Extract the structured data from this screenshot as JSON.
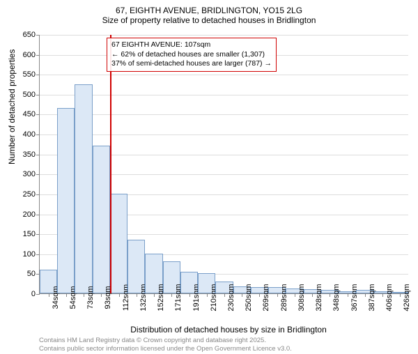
{
  "titles": {
    "line1": "67, EIGHTH AVENUE, BRIDLINGTON, YO15 2LG",
    "line2": "Size of property relative to detached houses in Bridlington"
  },
  "axes": {
    "ylabel": "Number of detached properties",
    "xlabel": "Distribution of detached houses by size in Bridlington",
    "ylim": [
      0,
      650
    ],
    "ytick_step": 50,
    "label_fontsize": 12,
    "tick_fontsize": 11
  },
  "grid_color": "#dddddd",
  "axis_color": "#888888",
  "background_color": "#ffffff",
  "bars": {
    "categories": [
      "34sqm",
      "54sqm",
      "73sqm",
      "93sqm",
      "112sqm",
      "132sqm",
      "152sqm",
      "171sqm",
      "191sqm",
      "210sqm",
      "230sqm",
      "250sqm",
      "269sqm",
      "289sqm",
      "308sqm",
      "328sqm",
      "348sqm",
      "367sqm",
      "387sqm",
      "406sqm",
      "426sqm"
    ],
    "values": [
      60,
      465,
      525,
      370,
      250,
      135,
      100,
      80,
      55,
      50,
      30,
      18,
      15,
      15,
      12,
      10,
      8,
      6,
      8,
      5,
      4
    ],
    "fill_color": "#dce8f6",
    "border_color": "#7a9fc9",
    "bar_width_ratio": 1.0
  },
  "reference_line": {
    "position_index": 4,
    "color": "#d00000",
    "width": 2
  },
  "annotation": {
    "line1": "67 EIGHTH AVENUE: 107sqm",
    "line2": "← 62% of detached houses are smaller (1,307)",
    "line3": "37% of semi-detached houses are larger (787) →",
    "border_color": "#d00000",
    "fontsize": 10.5
  },
  "footer": {
    "line1": "Contains HM Land Registry data © Crown copyright and database right 2025.",
    "line2": "Contains public sector information licensed under the Open Government Licence v3.0.",
    "color": "#888888",
    "fontsize": 9.5
  }
}
